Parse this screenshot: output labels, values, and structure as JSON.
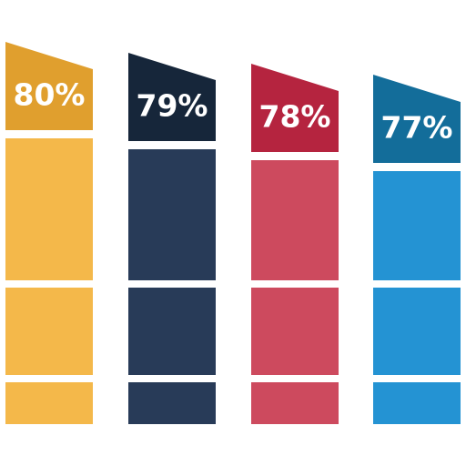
{
  "chart_data": {
    "type": "bar",
    "values": [
      80,
      79,
      78,
      77
    ],
    "value_labels": [
      "80%",
      "79%",
      "78%",
      "77%"
    ],
    "colors": [
      "#f4b84a",
      "#283b58",
      "#cd4a5e",
      "#2493d3"
    ],
    "header_colors": [
      "#e09f2e",
      "#16263a",
      "#b5243f",
      "#136d9a"
    ],
    "ylim": [
      45,
      80
    ]
  }
}
